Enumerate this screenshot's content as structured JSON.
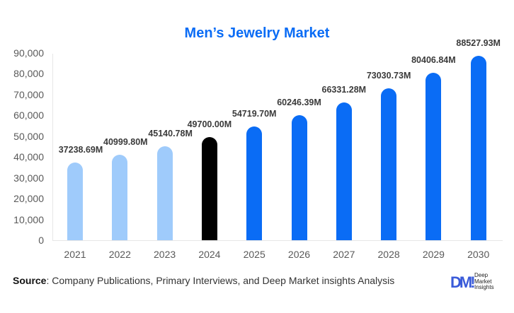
{
  "chart_data": {
    "type": "bar",
    "title": "Men’s Jewelry Market",
    "xlabel": "",
    "ylabel": "",
    "categories": [
      "2021",
      "2022",
      "2023",
      "2024",
      "2025",
      "2026",
      "2027",
      "2028",
      "2029",
      "2030"
    ],
    "values": [
      37238.69,
      40999.8,
      45140.78,
      49700.0,
      54719.7,
      60246.39,
      66331.28,
      73030.73,
      80406.84,
      88527.93
    ],
    "value_labels": [
      "37238.69M",
      "40999.80M",
      "45140.78M",
      "49700.00M",
      "54719.70M",
      "60246.39M",
      "66331.28M",
      "73030.73M",
      "80406.84M",
      "88527.93M"
    ],
    "bar_colors": [
      "#9fcbfb",
      "#9fcbfb",
      "#9fcbfb",
      "#000000",
      "#0a6cf5",
      "#0a6cf5",
      "#0a6cf5",
      "#0a6cf5",
      "#0a6cf5",
      "#0a6cf5"
    ],
    "ylim": [
      0,
      90000
    ],
    "yticks": [
      "0",
      "10,000",
      "20,000",
      "30,000",
      "40,000",
      "50,000",
      "60,000",
      "70,000",
      "80,000",
      "90,000"
    ],
    "grid": false,
    "legend": null
  },
  "title": "Men’s Jewelry Market",
  "footer": {
    "source_label": "Source",
    "source_text": ": Company Publications, Primary Interviews, and Deep Market insights Analysis"
  },
  "logo": {
    "mark": "DM!",
    "line1": "Deep",
    "line2": "Market",
    "line3": "Insights"
  },
  "colors": {
    "title": "#0a6cf5",
    "historical": "#9fcbfb",
    "base_year": "#000000",
    "forecast": "#0a6cf5"
  }
}
